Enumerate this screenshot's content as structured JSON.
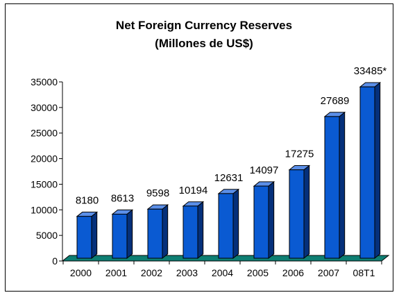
{
  "chart_data": {
    "type": "bar",
    "title": "Net Foreign Currency Reserves",
    "subtitle": "(Millones de US$)",
    "categories": [
      "2000",
      "2001",
      "2002",
      "2003",
      "2004",
      "2005",
      "2006",
      "2007",
      "08T1"
    ],
    "values": [
      8180,
      8613,
      9598,
      10194,
      12631,
      14097,
      17275,
      27689,
      33485
    ],
    "data_labels": [
      "8180",
      "8613",
      "9598",
      "10194",
      "12631",
      "14097",
      "17275",
      "27689",
      "33485*"
    ],
    "ylim": [
      0,
      35000
    ],
    "yticks": [
      0,
      5000,
      10000,
      15000,
      20000,
      25000,
      30000,
      35000
    ],
    "xlabel": "",
    "ylabel": "",
    "grid": false,
    "legend": "none",
    "colors": {
      "bar_front": "#0a5ad2",
      "bar_side": "#05307a",
      "bar_top": "#5b8fe8",
      "floor": "#0e7f73"
    }
  }
}
